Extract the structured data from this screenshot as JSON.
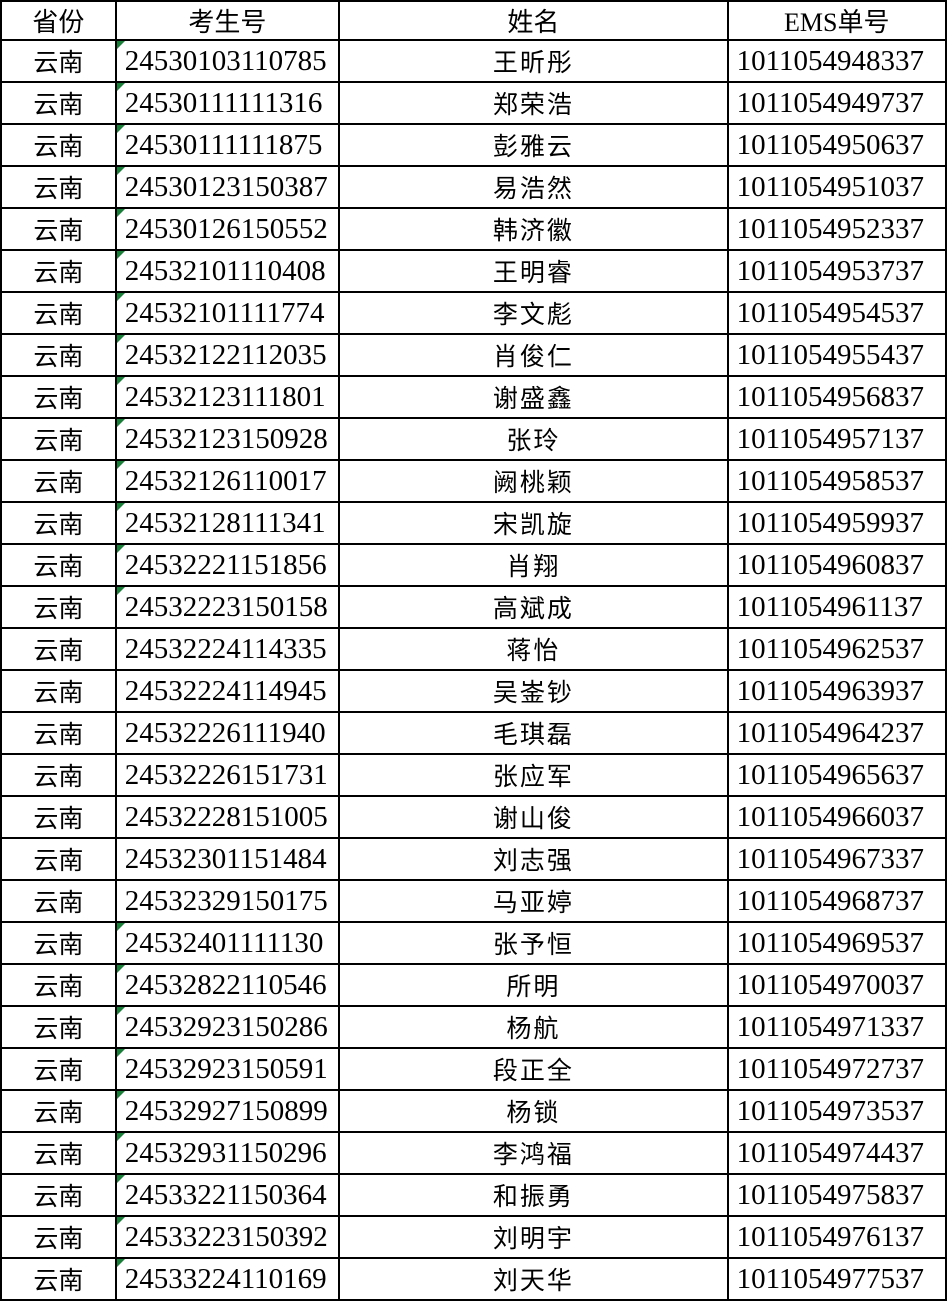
{
  "colors": {
    "indicator_green": "#188038",
    "border": "#000000",
    "background": "#ffffff",
    "text": "#000000"
  },
  "table": {
    "columns": [
      "省份",
      "考生号",
      "姓名",
      "EMS单号"
    ],
    "rows": [
      {
        "province": "云南",
        "candidate_no": "24530103110785",
        "name": "王昕彤",
        "ems_no": "1011054948337",
        "text_indicator": true
      },
      {
        "province": "云南",
        "candidate_no": "24530111111316",
        "name": "郑荣浩",
        "ems_no": "1011054949737",
        "text_indicator": true
      },
      {
        "province": "云南",
        "candidate_no": "24530111111875",
        "name": "彭雅云",
        "ems_no": "1011054950637",
        "text_indicator": true
      },
      {
        "province": "云南",
        "candidate_no": "24530123150387",
        "name": "易浩然",
        "ems_no": "1011054951037",
        "text_indicator": true
      },
      {
        "province": "云南",
        "candidate_no": "24530126150552",
        "name": "韩济徽",
        "ems_no": "1011054952337",
        "text_indicator": true
      },
      {
        "province": "云南",
        "candidate_no": "24532101110408",
        "name": "王明睿",
        "ems_no": "1011054953737",
        "text_indicator": true
      },
      {
        "province": "云南",
        "candidate_no": "24532101111774",
        "name": "李文彪",
        "ems_no": "1011054954537",
        "text_indicator": true
      },
      {
        "province": "云南",
        "candidate_no": "24532122112035",
        "name": "肖俊仁",
        "ems_no": "1011054955437",
        "text_indicator": true
      },
      {
        "province": "云南",
        "candidate_no": "24532123111801",
        "name": "谢盛鑫",
        "ems_no": "1011054956837",
        "text_indicator": true
      },
      {
        "province": "云南",
        "candidate_no": "24532123150928",
        "name": "张玲",
        "ems_no": "1011054957137",
        "text_indicator": true
      },
      {
        "province": "云南",
        "candidate_no": "24532126110017",
        "name": "阙桃颖",
        "ems_no": "1011054958537",
        "text_indicator": true
      },
      {
        "province": "云南",
        "candidate_no": "24532128111341",
        "name": "宋凯旋",
        "ems_no": "1011054959937",
        "text_indicator": true
      },
      {
        "province": "云南",
        "candidate_no": "24532221151856",
        "name": "肖翔",
        "ems_no": "1011054960837",
        "text_indicator": true
      },
      {
        "province": "云南",
        "candidate_no": "24532223150158",
        "name": "高斌成",
        "ems_no": "1011054961137",
        "text_indicator": true
      },
      {
        "province": "云南",
        "candidate_no": "24532224114335",
        "name": "蒋怡",
        "ems_no": "1011054962537",
        "text_indicator": false
      },
      {
        "province": "云南",
        "candidate_no": "24532224114945",
        "name": "吴崟钞",
        "ems_no": "1011054963937",
        "text_indicator": false
      },
      {
        "province": "云南",
        "candidate_no": "24532226111940",
        "name": "毛琪磊",
        "ems_no": "1011054964237",
        "text_indicator": false
      },
      {
        "province": "云南",
        "candidate_no": "24532226151731",
        "name": "张应军",
        "ems_no": "1011054965637",
        "text_indicator": false
      },
      {
        "province": "云南",
        "candidate_no": "24532228151005",
        "name": "谢山俊",
        "ems_no": "1011054966037",
        "text_indicator": false
      },
      {
        "province": "云南",
        "candidate_no": "24532301151484",
        "name": "刘志强",
        "ems_no": "1011054967337",
        "text_indicator": false
      },
      {
        "province": "云南",
        "candidate_no": "24532329150175",
        "name": "马亚婷",
        "ems_no": "1011054968737",
        "text_indicator": false
      },
      {
        "province": "云南",
        "candidate_no": "24532401111130",
        "name": "张予恒",
        "ems_no": "1011054969537",
        "text_indicator": true
      },
      {
        "province": "云南",
        "candidate_no": "24532822110546",
        "name": "所明",
        "ems_no": "1011054970037",
        "text_indicator": true
      },
      {
        "province": "云南",
        "candidate_no": "24532923150286",
        "name": "杨航",
        "ems_no": "1011054971337",
        "text_indicator": true
      },
      {
        "province": "云南",
        "candidate_no": "24532923150591",
        "name": "段正全",
        "ems_no": "1011054972737",
        "text_indicator": true
      },
      {
        "province": "云南",
        "candidate_no": "24532927150899",
        "name": "杨锁",
        "ems_no": "1011054973537",
        "text_indicator": true
      },
      {
        "province": "云南",
        "candidate_no": "24532931150296",
        "name": "李鸿福",
        "ems_no": "1011054974437",
        "text_indicator": true
      },
      {
        "province": "云南",
        "candidate_no": "24533221150364",
        "name": "和振勇",
        "ems_no": "1011054975837",
        "text_indicator": true
      },
      {
        "province": "云南",
        "candidate_no": "24533223150392",
        "name": "刘明宇",
        "ems_no": "1011054976137",
        "text_indicator": true
      },
      {
        "province": "云南",
        "candidate_no": "24533224110169",
        "name": "刘天华",
        "ems_no": "1011054977537",
        "text_indicator": true
      }
    ]
  }
}
